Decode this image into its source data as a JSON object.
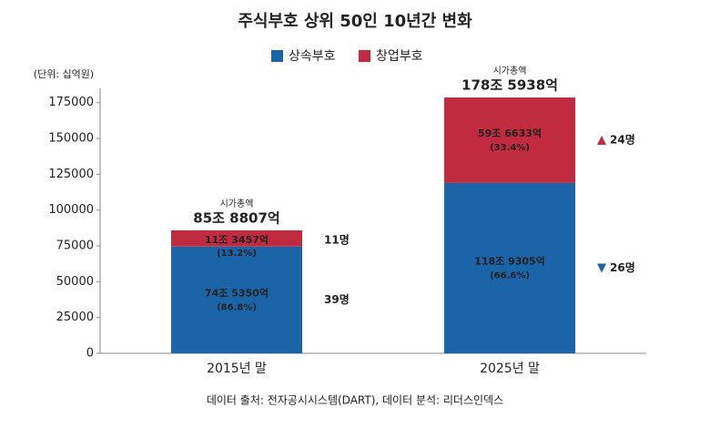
{
  "chart_data": {
    "type": "stacked-bar",
    "title": "주식부호 상위 50인 10년간 변화",
    "unit_label": "(단위: 십억원)",
    "source": "데이터 출처: 전자공시시스템(DART), 데이터 분석: 리더스인덱스",
    "categories": [
      "2015년 말",
      "2025년 말"
    ],
    "series": [
      {
        "name": "상속부호",
        "color": "#1b64a7",
        "values": [
          74535.0,
          118930.5
        ],
        "value_labels": [
          "74조 5350억",
          "118조 9305억"
        ],
        "percent_labels": [
          {
            "value": 86.8,
            "label": "(86.8%)"
          },
          {
            "value": 66.6,
            "label": "(66.6%)"
          }
        ],
        "count_labels": [
          {
            "value": 39,
            "label": "39명"
          },
          {
            "value": 26,
            "label": "26명"
          }
        ],
        "trend": [
          null,
          "down"
        ]
      },
      {
        "name": "창업부호",
        "color": "#c12b3f",
        "values": [
          11345.7,
          59663.3
        ],
        "value_labels": [
          "11조 3457억",
          "59조 6633억"
        ],
        "percent_labels": [
          {
            "value": 13.2,
            "label": "(13.2%)"
          },
          {
            "value": 33.4,
            "label": "(33.4%)"
          }
        ],
        "count_labels": [
          {
            "value": 11,
            "label": "11명"
          },
          {
            "value": 24,
            "label": "24명"
          }
        ],
        "trend": [
          null,
          "up"
        ]
      }
    ],
    "total_caption": "시가총액",
    "totals": [
      {
        "value": 85880.7,
        "label": "85조 8807억"
      },
      {
        "value": 178593.8,
        "label": "178조 5938억"
      }
    ],
    "ylim": [
      0,
      185000
    ],
    "yticks": [
      0,
      25000,
      50000,
      75000,
      100000,
      125000,
      150000,
      175000
    ]
  }
}
